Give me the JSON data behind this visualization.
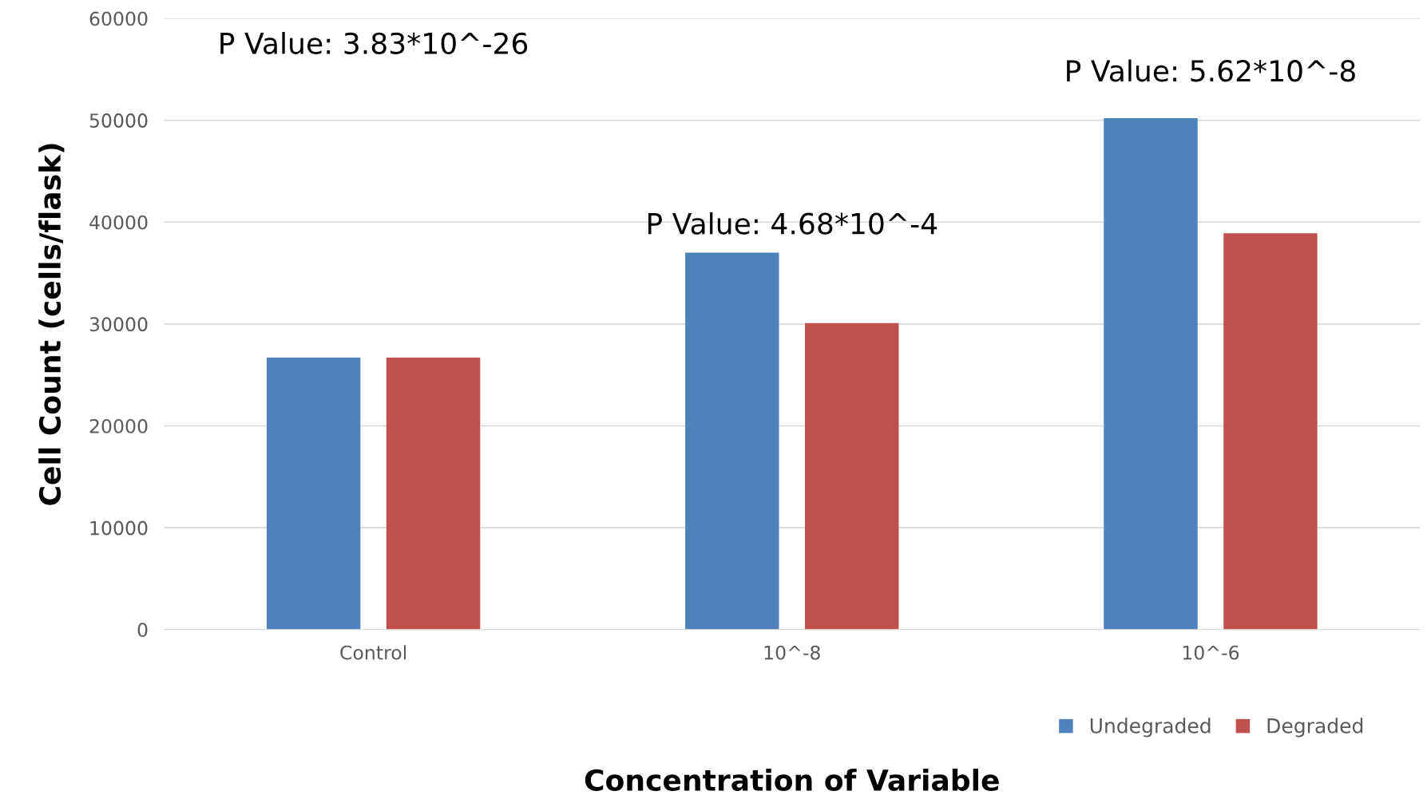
{
  "chart_data": {
    "type": "bar",
    "xlabel": "Concentration of Variable",
    "ylabel": "Cell Count (cells/flask)",
    "categories": [
      "Control",
      "10^-8",
      "10^-6"
    ],
    "series": [
      {
        "name": "Undegraded",
        "color": "#4f81bd",
        "values": [
          26700,
          37000,
          50200
        ]
      },
      {
        "name": "Degraded",
        "color": "#c0504d",
        "values": [
          26700,
          30100,
          38900
        ]
      }
    ],
    "ylim": [
      0,
      60000
    ],
    "yticks": [
      0,
      10000,
      20000,
      30000,
      40000,
      50000,
      60000
    ],
    "grid": "y",
    "legend": "bottom right",
    "annotations": [
      "P Value: 3.83*10^-26",
      "P Value: 4.68*10^-4",
      "P Value: 5.62*10^-8"
    ]
  }
}
